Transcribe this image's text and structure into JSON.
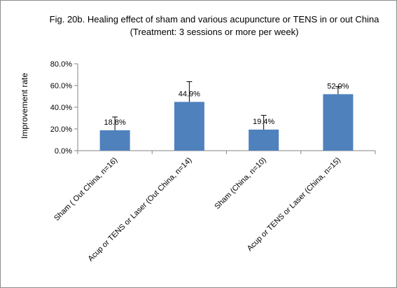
{
  "chart_data": {
    "type": "bar",
    "title": "Fig. 20b.  Healing effect of sham and various acupuncture  or  TENS in or out China",
    "subtitle": "(Treatment:  3 sessions or more per week)",
    "ylabel": "Improvement rate",
    "xlabel": "",
    "ylim": [
      0,
      80
    ],
    "yticks": [
      0,
      20,
      40,
      60,
      80
    ],
    "ytick_labels": [
      "0.0%",
      "20.0%",
      "40.0%",
      "60.0%",
      "80.0%"
    ],
    "categories": [
      "Sham ( Out China, n=16)",
      "Acup or TENS or Laser (Out China, n=14)",
      "Sham (China, n=10)",
      "Acup or TENS or Laser (China, n=15)"
    ],
    "values": [
      18.8,
      44.9,
      19.4,
      52.0
    ],
    "data_labels": [
      "18.8%",
      "44.9%",
      "19.4%",
      "52.0%"
    ],
    "error_upper": [
      31.0,
      63.5,
      32.5,
      59.0
    ],
    "bar_color": "#4f81bd",
    "grid": false,
    "legend": "none"
  }
}
